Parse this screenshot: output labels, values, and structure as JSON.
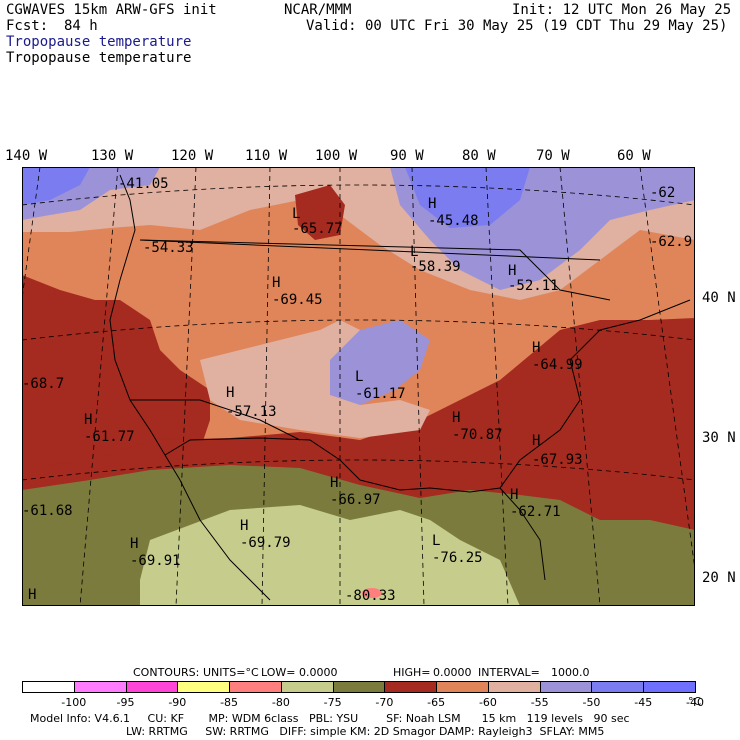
{
  "header": {
    "model": "CGWAVES 15km ARW-GFS init",
    "org": "NCAR/MMM",
    "init": "Init: 12 UTC Mon 26 May 25",
    "fcst_label": "Fcst:",
    "fcst_value": "84 h",
    "valid": "Valid: 00 UTC Fri 30 May 25 (19 CDT Thu 29 May 25)",
    "field_title_1": "Tropopause temperature",
    "field_title_2": "Tropopause temperature"
  },
  "longitudes": [
    "140 W",
    "130 W",
    "120 W",
    "110 W",
    "100 W",
    "90 W",
    "80 W",
    "70 W",
    "60 W"
  ],
  "latitudes": [
    "40 N",
    "30 N",
    "20 N"
  ],
  "map_labels": [
    {
      "mark": "",
      "value": "-41.05"
    },
    {
      "mark": "",
      "value": "-54.33"
    },
    {
      "mark": "L",
      "value": "-65.77"
    },
    {
      "mark": "H",
      "value": "-45.48"
    },
    {
      "mark": "L",
      "value": "-58.39"
    },
    {
      "mark": "H",
      "value": "-52.11"
    },
    {
      "mark": "H",
      "value": "-69.45"
    },
    {
      "mark": "",
      "value": "-62"
    },
    {
      "mark": "",
      "value": "-62.9"
    },
    {
      "mark": "",
      "value": "-68.7"
    },
    {
      "mark": "H",
      "value": "-57.13"
    },
    {
      "mark": "L",
      "value": "-61.17"
    },
    {
      "mark": "H",
      "value": "-61.77"
    },
    {
      "mark": "H",
      "value": "-70.87"
    },
    {
      "mark": "H",
      "value": "-64.99"
    },
    {
      "mark": "H",
      "value": "-67.93"
    },
    {
      "mark": "H",
      "value": "-66.97"
    },
    {
      "mark": "",
      "value": "-61.68"
    },
    {
      "mark": "H",
      "value": "-62.71"
    },
    {
      "mark": "H",
      "value": "-69.79"
    },
    {
      "mark": "H",
      "value": "-69.91"
    },
    {
      "mark": "L",
      "value": "-76.25"
    },
    {
      "mark": "H",
      "value": ""
    },
    {
      "mark": "",
      "value": "-80.33"
    }
  ],
  "contour_info": {
    "contours": "CONTOURS:",
    "units": "UNITS=°C",
    "low": "LOW=",
    "low_value": "0.0000",
    "high": "HIGH=",
    "high_value": "0.0000",
    "interval": "INTERVAL=",
    "interval_value": "1000.0"
  },
  "colorbar": {
    "colors": [
      "#ffffff",
      "#ff7cff",
      "#ff45d8",
      "#ffff80",
      "#ff7f7f",
      "#c6cd8c",
      "#7b7b3e",
      "#a52a1f",
      "#e0855a",
      "#e0b0a0",
      "#9b92d8",
      "#7a7cf0",
      "#6f70ff"
    ],
    "labels": [
      "-100",
      "-95",
      "-90",
      "-85",
      "-80",
      "-75",
      "-70",
      "-65",
      "-60",
      "-55",
      "-50",
      "-45",
      "-40"
    ],
    "unit": "°C"
  },
  "footer": {
    "line1": "Model Info: V4.6.1     CU: KF       MP: WDM 6class   PBL: YSU        SF: Noah LSM      15 km   119 levels   90 sec",
    "line2": "LW: RRTMG     SW: RRTMG   DIFF: simple KM: 2D Smagor DAMP: Rayleigh3  SFLAY: MM5"
  }
}
